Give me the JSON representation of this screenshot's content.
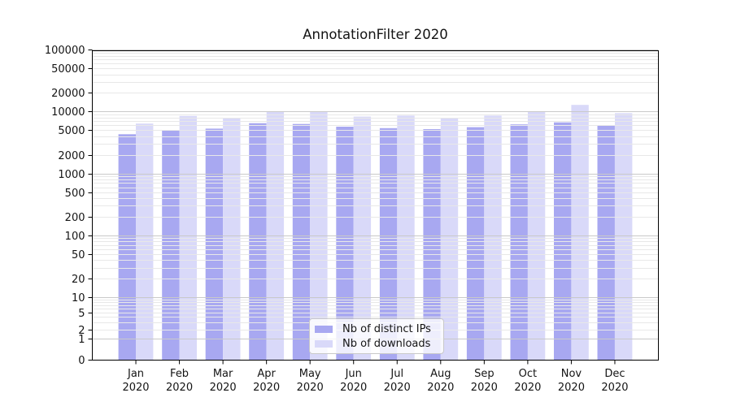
{
  "chart_data": {
    "type": "bar",
    "title": "AnnotationFilter 2020",
    "categories": [
      "Jan",
      "Feb",
      "Mar",
      "Apr",
      "May",
      "Jun",
      "Jul",
      "Aug",
      "Sep",
      "Oct",
      "Nov",
      "Dec"
    ],
    "x_tick_year": "2020",
    "series": [
      {
        "name": "Nb of distinct IPs",
        "color": "#a8a8f1",
        "values": [
          4300,
          4900,
          5300,
          6500,
          6300,
          5700,
          5400,
          5200,
          5600,
          6200,
          6700,
          6000
        ]
      },
      {
        "name": "Nb of downloads",
        "color": "#d9d9f9",
        "values": [
          6400,
          8500,
          7800,
          9900,
          9900,
          8300,
          8600,
          7700,
          8600,
          9900,
          12800,
          9400
        ]
      }
    ],
    "y_ticks": [
      0,
      1,
      2,
      5,
      10,
      20,
      50,
      100,
      200,
      500,
      1000,
      2000,
      5000,
      10000,
      20000,
      50000,
      100000
    ],
    "ylim": [
      0,
      100000
    ],
    "yscale": "symlog",
    "xlabel": "",
    "ylabel": "",
    "grid": {
      "horizontal_only": true,
      "major_color": "#c9c9c9",
      "minor_color": "#e8e8e8"
    },
    "legend_position": "lower center inside plot"
  }
}
